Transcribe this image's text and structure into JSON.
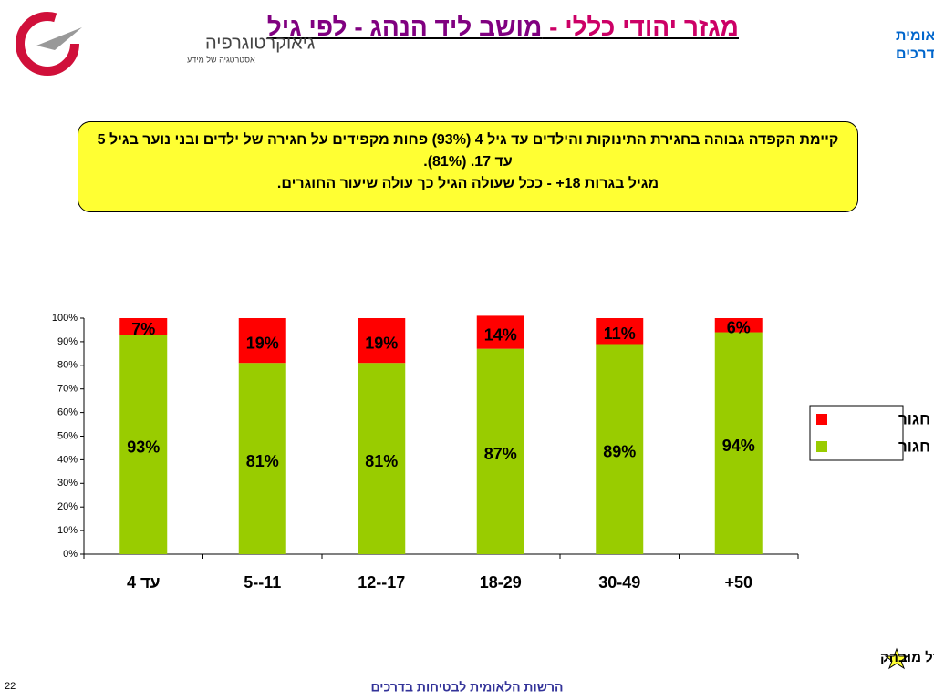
{
  "header": {
    "org": [
      "הרשות הלאומית",
      "לבטיחות בדרכים"
    ],
    "title": [
      "מגזר יהודי כללי - ",
      "מושב ליד הנהג - לפי גיל"
    ],
    "logo_name": "גיאוקרטוגרפיה",
    "logo_tagline": "אסטרטגיה של מידע"
  },
  "info_box": [
    "קיימת הקפדה גבוהה בחגירת התינוקות והילדים עד גיל 4 (93%) פחות מקפידים על חגירה של ילדים ובני נוער בגיל 5 עד 17. (81%).",
    "מגיל בגרות 18+ - ככל שעולה הגיל כך עולה שיעור החוגרים."
  ],
  "chart_data": {
    "type": "stacked_bar",
    "categories": [
      "עד 4",
      "5--11",
      "12--17",
      "18-29",
      "30-49",
      "+50"
    ],
    "series": [
      {
        "name": "חגור",
        "color": "#99cc00",
        "values": [
          93,
          81,
          81,
          87,
          89,
          94
        ],
        "value_labels": [
          "93%",
          "81%",
          "81%",
          "87%",
          "89%",
          "94%"
        ]
      },
      {
        "name": "לא חגור",
        "color": "#ff0000",
        "values": [
          7,
          19,
          19,
          14,
          11,
          6
        ],
        "value_labels": [
          "7%",
          "19%",
          "19%",
          "14%",
          "11%",
          "6%"
        ]
      }
    ],
    "ylim": [
      0,
      100
    ],
    "yticks": [
      {
        "value": 0,
        "label": "0%"
      },
      {
        "value": 10,
        "label": "10%"
      },
      {
        "value": 20,
        "label": "20%"
      },
      {
        "value": 30,
        "label": "30%"
      },
      {
        "value": 40,
        "label": "40%"
      },
      {
        "value": 50,
        "label": "50%"
      },
      {
        "value": 60,
        "label": "60%"
      },
      {
        "value": 70,
        "label": "70%"
      },
      {
        "value": 80,
        "label": "80%"
      },
      {
        "value": 90,
        "label": "90%"
      },
      {
        "value": 100,
        "label": "100%"
      }
    ],
    "legend": "right"
  },
  "legend_note": "הבדל מובהק",
  "footer": "הרשות הלאומית לבטיחות בדרכים",
  "page_number": "22"
}
